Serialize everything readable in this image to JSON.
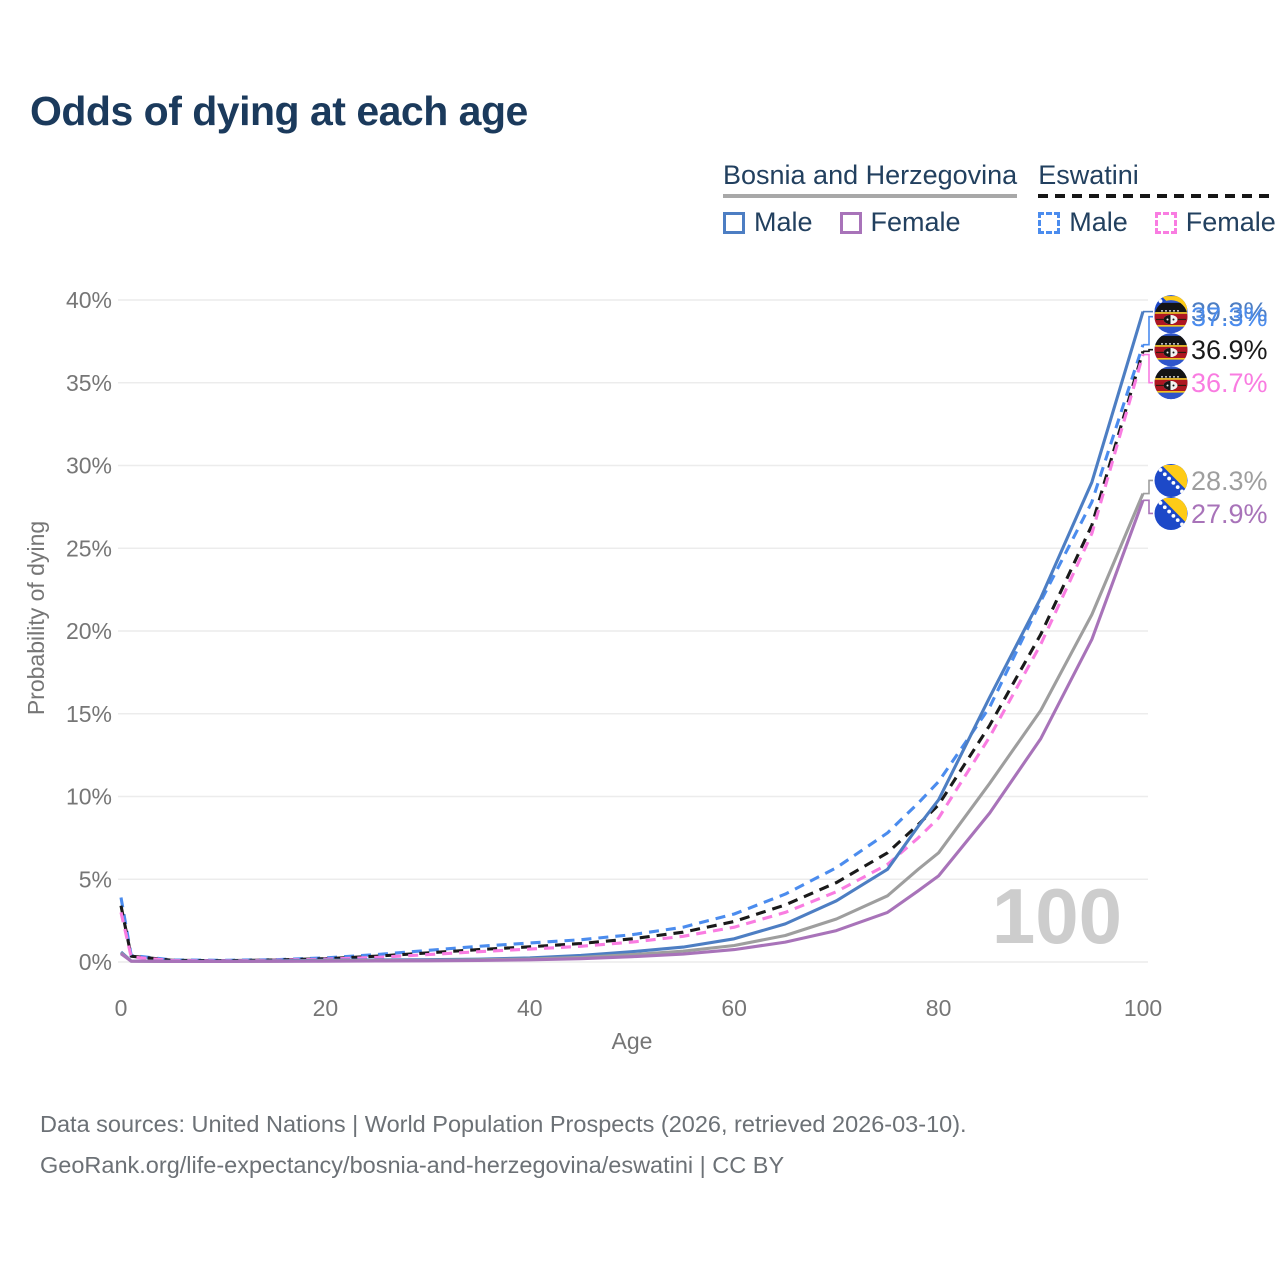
{
  "title": "Odds of dying at each age",
  "legend": {
    "groups": [
      {
        "label": "Bosnia and Herzegovina",
        "line_style": "solid",
        "underline_color": "#a8a8a8",
        "items": [
          {
            "label": "Male",
            "color": "#4d7ec3",
            "dashed": false
          },
          {
            "label": "Female",
            "color": "#a873b9",
            "dashed": false
          }
        ]
      },
      {
        "label": "Eswatini",
        "line_style": "dashed",
        "underline_color": "#161616",
        "items": [
          {
            "label": "Male",
            "color": "#4b8cee",
            "dashed": true
          },
          {
            "label": "Female",
            "color": "#f97ce1",
            "dashed": true
          }
        ]
      }
    ]
  },
  "chart_data": {
    "type": "line",
    "title": "Odds of dying at each age",
    "xlabel": "Age",
    "ylabel": "Probability of dying",
    "xlim": [
      0,
      100
    ],
    "ylim": [
      0,
      40
    ],
    "x_ticks": [
      0,
      20,
      40,
      60,
      80,
      100
    ],
    "y_ticks": [
      0,
      5,
      10,
      15,
      20,
      25,
      30,
      35,
      40
    ],
    "y_tick_suffix": "%",
    "grid": "horizontal",
    "legend_position": "top-right",
    "watermark": "100",
    "x": [
      0,
      1,
      5,
      10,
      15,
      20,
      25,
      30,
      35,
      40,
      45,
      50,
      55,
      60,
      65,
      70,
      75,
      78,
      80,
      85,
      90,
      95,
      100
    ],
    "series": [
      {
        "name": "Bosnia and Herzegovina — Male",
        "color": "#4d7ec3",
        "dash": false,
        "flag": "ba",
        "end_label": "39.3%",
        "values": [
          0.6,
          0.06,
          0.04,
          0.04,
          0.07,
          0.11,
          0.12,
          0.14,
          0.17,
          0.25,
          0.4,
          0.62,
          0.9,
          1.4,
          2.3,
          3.7,
          5.6,
          8.2,
          9.8,
          16.0,
          22.0,
          29.0,
          39.3
        ]
      },
      {
        "name": "Eswatini — Male",
        "color": "#4b8cee",
        "dash": true,
        "flag": "sz",
        "end_label": "37.3%",
        "values": [
          3.9,
          0.4,
          0.12,
          0.1,
          0.14,
          0.25,
          0.45,
          0.7,
          0.95,
          1.15,
          1.35,
          1.65,
          2.1,
          2.9,
          4.1,
          5.7,
          7.8,
          9.6,
          10.9,
          15.4,
          21.8,
          27.8,
          37.3
        ]
      },
      {
        "name": "Eswatini — Both sexes",
        "color": "#1a1a1a",
        "dash": true,
        "flag": "sz",
        "end_label": "36.9%",
        "values": [
          3.4,
          0.35,
          0.1,
          0.08,
          0.12,
          0.2,
          0.35,
          0.55,
          0.75,
          0.92,
          1.12,
          1.4,
          1.8,
          2.45,
          3.45,
          4.8,
          6.6,
          8.3,
          9.5,
          14.3,
          19.8,
          26.4,
          36.9
        ]
      },
      {
        "name": "Eswatini — Female",
        "color": "#f97ce1",
        "dash": true,
        "flag": "sz",
        "end_label": "36.7%",
        "values": [
          3.0,
          0.3,
          0.09,
          0.07,
          0.1,
          0.17,
          0.28,
          0.45,
          0.62,
          0.78,
          0.95,
          1.2,
          1.55,
          2.1,
          3.0,
          4.25,
          5.9,
          7.5,
          8.7,
          13.6,
          19.2,
          25.9,
          36.7
        ]
      },
      {
        "name": "Bosnia and Herzegovina — Both sexes",
        "color": "#9e9e9e",
        "dash": false,
        "flag": "ba",
        "end_label": "28.3%",
        "values": [
          0.55,
          0.05,
          0.03,
          0.03,
          0.05,
          0.08,
          0.09,
          0.1,
          0.13,
          0.18,
          0.28,
          0.45,
          0.65,
          1.0,
          1.6,
          2.6,
          4.0,
          5.6,
          6.6,
          10.8,
          15.2,
          21.0,
          28.3
        ]
      },
      {
        "name": "Bosnia and Herzegovina — Female",
        "color": "#a873b9",
        "dash": false,
        "flag": "ba",
        "end_label": "27.9%",
        "values": [
          0.5,
          0.05,
          0.03,
          0.03,
          0.04,
          0.05,
          0.06,
          0.07,
          0.09,
          0.13,
          0.2,
          0.32,
          0.48,
          0.75,
          1.2,
          1.9,
          3.0,
          4.3,
          5.2,
          9.0,
          13.5,
          19.5,
          27.9
        ]
      }
    ]
  },
  "footer": {
    "line1": "Data sources: United Nations | World Population Prospects (2026, retrieved 2026-03-10).",
    "line2": "GeoRank.org/life-expectancy/bosnia-and-herzegovina/eswatini | CC BY"
  }
}
